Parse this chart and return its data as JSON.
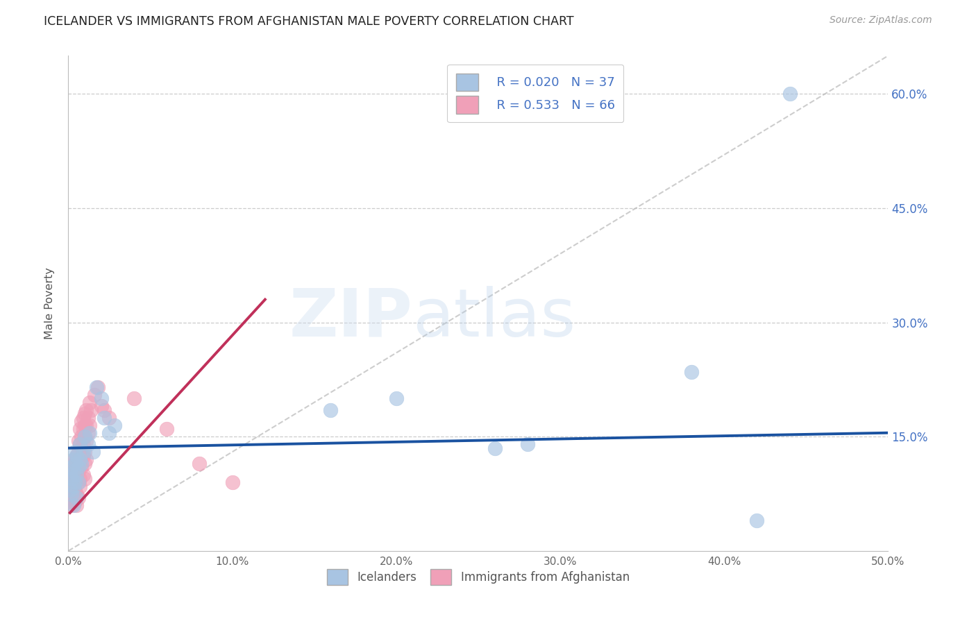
{
  "title": "ICELANDER VS IMMIGRANTS FROM AFGHANISTAN MALE POVERTY CORRELATION CHART",
  "source": "Source: ZipAtlas.com",
  "ylabel": "Male Poverty",
  "xlim": [
    0.0,
    0.5
  ],
  "ylim": [
    0.0,
    0.65
  ],
  "xticks": [
    0.0,
    0.1,
    0.2,
    0.3,
    0.4,
    0.5
  ],
  "yticks": [
    0.15,
    0.3,
    0.45,
    0.6
  ],
  "xticklabels": [
    "0.0%",
    "10.0%",
    "20.0%",
    "30.0%",
    "40.0%",
    "50.0%"
  ],
  "yticklabels_right": [
    "15.0%",
    "30.0%",
    "45.0%",
    "60.0%"
  ],
  "legend_r1": "R = 0.020",
  "legend_n1": "N = 37",
  "legend_r2": "R = 0.533",
  "legend_n2": "N = 66",
  "color_icelander": "#a8c4e2",
  "color_afghanistan": "#f0a0b8",
  "color_line_icelander": "#1a52a0",
  "color_line_afghanistan": "#c0305a",
  "color_diag": "#b8b8b8",
  "icelanders_x": [
    0.001,
    0.001,
    0.002,
    0.002,
    0.002,
    0.003,
    0.003,
    0.003,
    0.003,
    0.004,
    0.004,
    0.004,
    0.005,
    0.005,
    0.005,
    0.006,
    0.006,
    0.007,
    0.007,
    0.008,
    0.009,
    0.01,
    0.012,
    0.013,
    0.015,
    0.017,
    0.02,
    0.022,
    0.025,
    0.028,
    0.16,
    0.2,
    0.26,
    0.28,
    0.38,
    0.42,
    0.44
  ],
  "icelanders_y": [
    0.1,
    0.08,
    0.11,
    0.095,
    0.075,
    0.12,
    0.085,
    0.105,
    0.06,
    0.09,
    0.13,
    0.115,
    0.1,
    0.07,
    0.125,
    0.11,
    0.09,
    0.14,
    0.12,
    0.115,
    0.13,
    0.15,
    0.14,
    0.155,
    0.13,
    0.215,
    0.2,
    0.175,
    0.155,
    0.165,
    0.185,
    0.2,
    0.135,
    0.14,
    0.235,
    0.04,
    0.6
  ],
  "afghanistan_x": [
    0.001,
    0.001,
    0.001,
    0.002,
    0.002,
    0.002,
    0.002,
    0.003,
    0.003,
    0.003,
    0.003,
    0.003,
    0.004,
    0.004,
    0.004,
    0.004,
    0.004,
    0.005,
    0.005,
    0.005,
    0.005,
    0.005,
    0.006,
    0.006,
    0.006,
    0.006,
    0.006,
    0.006,
    0.007,
    0.007,
    0.007,
    0.007,
    0.007,
    0.008,
    0.008,
    0.008,
    0.008,
    0.009,
    0.009,
    0.009,
    0.009,
    0.009,
    0.01,
    0.01,
    0.01,
    0.01,
    0.01,
    0.01,
    0.011,
    0.011,
    0.011,
    0.011,
    0.012,
    0.012,
    0.013,
    0.013,
    0.014,
    0.016,
    0.018,
    0.02,
    0.022,
    0.025,
    0.04,
    0.06,
    0.08,
    0.1
  ],
  "afghanistan_y": [
    0.08,
    0.065,
    0.1,
    0.09,
    0.075,
    0.11,
    0.06,
    0.085,
    0.095,
    0.105,
    0.07,
    0.115,
    0.08,
    0.1,
    0.12,
    0.065,
    0.09,
    0.11,
    0.075,
    0.095,
    0.125,
    0.06,
    0.13,
    0.115,
    0.145,
    0.09,
    0.105,
    0.07,
    0.12,
    0.14,
    0.095,
    0.16,
    0.085,
    0.135,
    0.15,
    0.11,
    0.17,
    0.125,
    0.14,
    0.16,
    0.1,
    0.175,
    0.13,
    0.15,
    0.165,
    0.115,
    0.18,
    0.095,
    0.145,
    0.165,
    0.12,
    0.185,
    0.155,
    0.175,
    0.165,
    0.195,
    0.185,
    0.205,
    0.215,
    0.19,
    0.185,
    0.175,
    0.2,
    0.16,
    0.115,
    0.09
  ],
  "blue_trend_x": [
    0.0,
    0.5
  ],
  "blue_trend_y": [
    0.135,
    0.155
  ],
  "pink_trend_x": [
    0.001,
    0.12
  ],
  "pink_trend_y": [
    0.05,
    0.33
  ]
}
